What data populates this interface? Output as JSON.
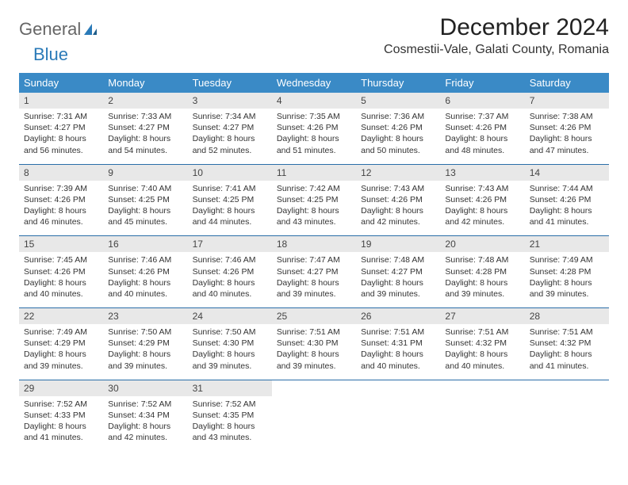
{
  "brand": {
    "part1": "General",
    "part2": "Blue"
  },
  "title": "December 2024",
  "location": "Cosmestii-Vale, Galati County, Romania",
  "colors": {
    "header_bg": "#3a8ac6",
    "header_text": "#ffffff",
    "daynum_bg": "#e8e8e8",
    "row_border": "#2a6ea8",
    "brand_blue": "#2a7ab8"
  },
  "weekdays": [
    "Sunday",
    "Monday",
    "Tuesday",
    "Wednesday",
    "Thursday",
    "Friday",
    "Saturday"
  ],
  "weeks": [
    [
      {
        "n": "1",
        "sr": "7:31 AM",
        "ss": "4:27 PM",
        "dl": "8 hours and 56 minutes."
      },
      {
        "n": "2",
        "sr": "7:33 AM",
        "ss": "4:27 PM",
        "dl": "8 hours and 54 minutes."
      },
      {
        "n": "3",
        "sr": "7:34 AM",
        "ss": "4:27 PM",
        "dl": "8 hours and 52 minutes."
      },
      {
        "n": "4",
        "sr": "7:35 AM",
        "ss": "4:26 PM",
        "dl": "8 hours and 51 minutes."
      },
      {
        "n": "5",
        "sr": "7:36 AM",
        "ss": "4:26 PM",
        "dl": "8 hours and 50 minutes."
      },
      {
        "n": "6",
        "sr": "7:37 AM",
        "ss": "4:26 PM",
        "dl": "8 hours and 48 minutes."
      },
      {
        "n": "7",
        "sr": "7:38 AM",
        "ss": "4:26 PM",
        "dl": "8 hours and 47 minutes."
      }
    ],
    [
      {
        "n": "8",
        "sr": "7:39 AM",
        "ss": "4:26 PM",
        "dl": "8 hours and 46 minutes."
      },
      {
        "n": "9",
        "sr": "7:40 AM",
        "ss": "4:25 PM",
        "dl": "8 hours and 45 minutes."
      },
      {
        "n": "10",
        "sr": "7:41 AM",
        "ss": "4:25 PM",
        "dl": "8 hours and 44 minutes."
      },
      {
        "n": "11",
        "sr": "7:42 AM",
        "ss": "4:25 PM",
        "dl": "8 hours and 43 minutes."
      },
      {
        "n": "12",
        "sr": "7:43 AM",
        "ss": "4:26 PM",
        "dl": "8 hours and 42 minutes."
      },
      {
        "n": "13",
        "sr": "7:43 AM",
        "ss": "4:26 PM",
        "dl": "8 hours and 42 minutes."
      },
      {
        "n": "14",
        "sr": "7:44 AM",
        "ss": "4:26 PM",
        "dl": "8 hours and 41 minutes."
      }
    ],
    [
      {
        "n": "15",
        "sr": "7:45 AM",
        "ss": "4:26 PM",
        "dl": "8 hours and 40 minutes."
      },
      {
        "n": "16",
        "sr": "7:46 AM",
        "ss": "4:26 PM",
        "dl": "8 hours and 40 minutes."
      },
      {
        "n": "17",
        "sr": "7:46 AM",
        "ss": "4:26 PM",
        "dl": "8 hours and 40 minutes."
      },
      {
        "n": "18",
        "sr": "7:47 AM",
        "ss": "4:27 PM",
        "dl": "8 hours and 39 minutes."
      },
      {
        "n": "19",
        "sr": "7:48 AM",
        "ss": "4:27 PM",
        "dl": "8 hours and 39 minutes."
      },
      {
        "n": "20",
        "sr": "7:48 AM",
        "ss": "4:28 PM",
        "dl": "8 hours and 39 minutes."
      },
      {
        "n": "21",
        "sr": "7:49 AM",
        "ss": "4:28 PM",
        "dl": "8 hours and 39 minutes."
      }
    ],
    [
      {
        "n": "22",
        "sr": "7:49 AM",
        "ss": "4:29 PM",
        "dl": "8 hours and 39 minutes."
      },
      {
        "n": "23",
        "sr": "7:50 AM",
        "ss": "4:29 PM",
        "dl": "8 hours and 39 minutes."
      },
      {
        "n": "24",
        "sr": "7:50 AM",
        "ss": "4:30 PM",
        "dl": "8 hours and 39 minutes."
      },
      {
        "n": "25",
        "sr": "7:51 AM",
        "ss": "4:30 PM",
        "dl": "8 hours and 39 minutes."
      },
      {
        "n": "26",
        "sr": "7:51 AM",
        "ss": "4:31 PM",
        "dl": "8 hours and 40 minutes."
      },
      {
        "n": "27",
        "sr": "7:51 AM",
        "ss": "4:32 PM",
        "dl": "8 hours and 40 minutes."
      },
      {
        "n": "28",
        "sr": "7:51 AM",
        "ss": "4:32 PM",
        "dl": "8 hours and 41 minutes."
      }
    ],
    [
      {
        "n": "29",
        "sr": "7:52 AM",
        "ss": "4:33 PM",
        "dl": "8 hours and 41 minutes."
      },
      {
        "n": "30",
        "sr": "7:52 AM",
        "ss": "4:34 PM",
        "dl": "8 hours and 42 minutes."
      },
      {
        "n": "31",
        "sr": "7:52 AM",
        "ss": "4:35 PM",
        "dl": "8 hours and 43 minutes."
      },
      null,
      null,
      null,
      null
    ]
  ],
  "labels": {
    "sunrise": "Sunrise:",
    "sunset": "Sunset:",
    "daylight": "Daylight:"
  }
}
